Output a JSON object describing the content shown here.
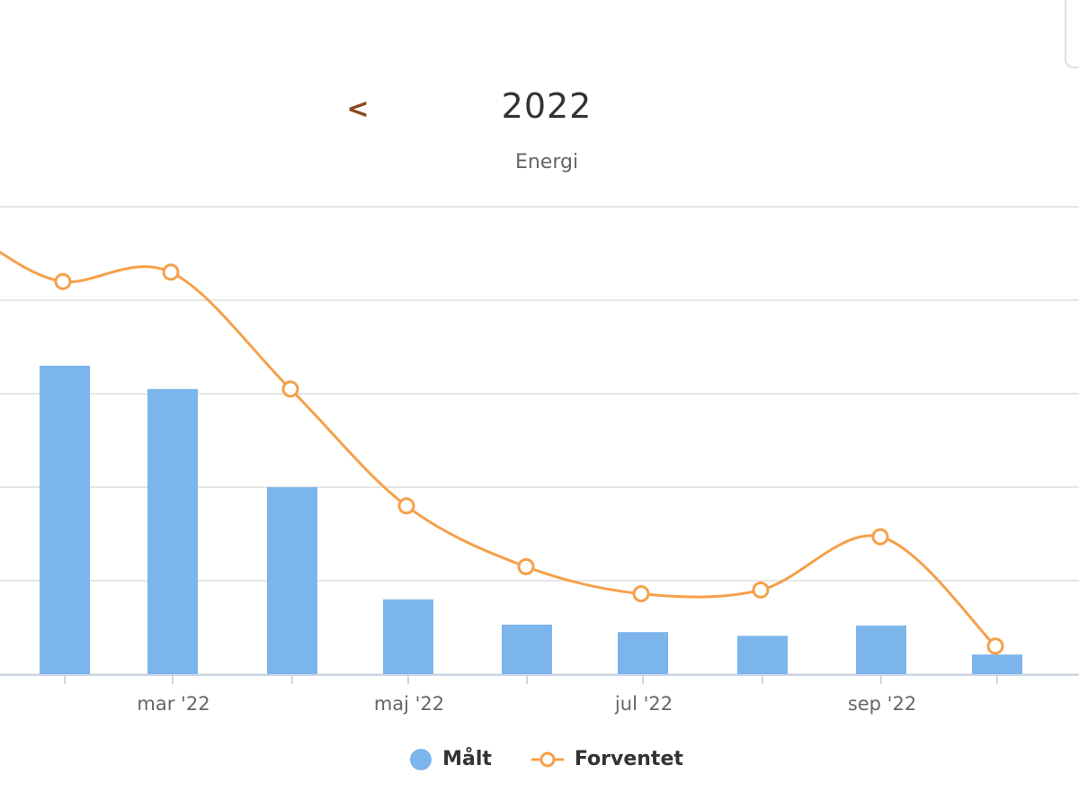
{
  "header": {
    "prev_label": "<",
    "year": "2022",
    "subtitle": "Energi"
  },
  "colors": {
    "bar": "#7cb5ec",
    "line": "#f5a04a",
    "grid": "#e6e6e6",
    "axis": "#ccd6eb",
    "prev_arrow": "#8a4a1c"
  },
  "chart_data": {
    "type": "bar",
    "x_tick_labels": [
      "mar '22",
      "maj '22",
      "jul '22",
      "sep '22"
    ],
    "grid": true,
    "legend_position": "bottom-center",
    "series": [
      {
        "name": "Målt",
        "type": "bar",
        "color": "#7cb5ec",
        "values": [
          3.3,
          3.05,
          2.0,
          0.8,
          0.53,
          0.45,
          0.41,
          0.52,
          0.21
        ]
      },
      {
        "name": "Forventet",
        "type": "spline",
        "color": "#f5a04a",
        "values": [
          4.57,
          4.2,
          4.3,
          3.05,
          1.8,
          1.15,
          0.86,
          0.9,
          1.47,
          0.3
        ]
      }
    ]
  }
}
